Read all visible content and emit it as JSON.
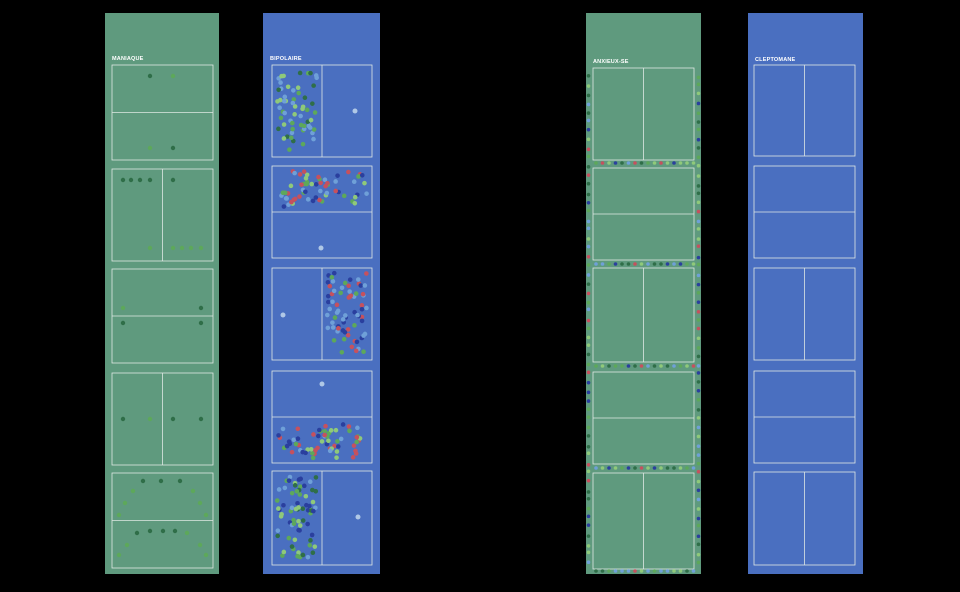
{
  "colors": {
    "background": "#000000",
    "green_strip": "#5f9a7e",
    "blue_strip": "#4a6fc0",
    "frame_line": "#dfe8e4",
    "dot_palette": [
      "#2f6e48",
      "#5da85a",
      "#8fc97a",
      "#c5515e",
      "#2a3f9e",
      "#6fa0d8",
      "#b0c8e6"
    ]
  },
  "strips": [
    {
      "id": "maniaque",
      "title": "MANIAQUE",
      "color": "green"
    },
    {
      "id": "bipolaire",
      "title": "BIPOLAIRE",
      "color": "blue"
    },
    {
      "id": "anxieux",
      "title": "ANXIEUX-SE",
      "color": "green"
    },
    {
      "id": "cleptomane",
      "title": "CLEPTOMANE",
      "color": "blue"
    }
  ]
}
